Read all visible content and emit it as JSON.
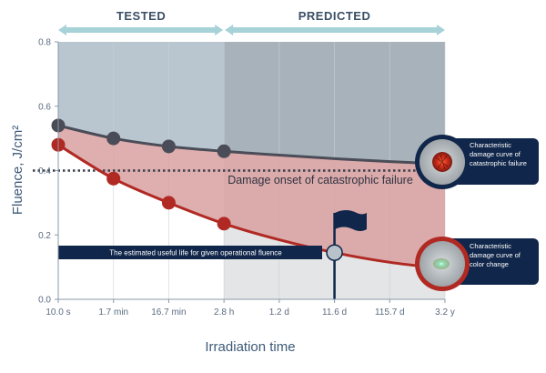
{
  "chart_data": {
    "type": "line",
    "ylabel": "Fluence, J/cm²",
    "xlabel": "Irradiation time",
    "ylim": [
      0,
      0.8
    ],
    "y_ticks": [
      "0.0",
      "0.2",
      "0.4",
      "0.6",
      "0.8"
    ],
    "x_ticks": [
      "10.0 s",
      "1.7 min",
      "16.7 min",
      "2.8 h",
      "1.2 d",
      "11.6 d",
      "115.7 d",
      "3.2 y"
    ],
    "phases": [
      {
        "label": "TESTED",
        "from": 0,
        "to": 3
      },
      {
        "label": "PREDICTED",
        "from": 3,
        "to": 7
      }
    ],
    "series": [
      {
        "key": "catastrophic",
        "color": "#4a4d57",
        "points": [
          {
            "x": 0,
            "y": 0.54
          },
          {
            "x": 1,
            "y": 0.5
          },
          {
            "x": 2,
            "y": 0.475
          },
          {
            "x": 3,
            "y": 0.46
          }
        ],
        "curve": [
          {
            "x": 0,
            "y": 0.54
          },
          {
            "x": 1,
            "y": 0.5
          },
          {
            "x": 2,
            "y": 0.475
          },
          {
            "x": 3,
            "y": 0.46
          },
          {
            "x": 4,
            "y": 0.448
          },
          {
            "x": 5,
            "y": 0.437
          },
          {
            "x": 6,
            "y": 0.428
          },
          {
            "x": 7,
            "y": 0.42
          }
        ]
      },
      {
        "key": "color_change",
        "color": "#b02a23",
        "points": [
          {
            "x": 0,
            "y": 0.48
          },
          {
            "x": 1,
            "y": 0.375
          },
          {
            "x": 2,
            "y": 0.3
          },
          {
            "x": 3,
            "y": 0.235
          }
        ],
        "curve": [
          {
            "x": 0,
            "y": 0.48
          },
          {
            "x": 1,
            "y": 0.375
          },
          {
            "x": 2,
            "y": 0.3
          },
          {
            "x": 3,
            "y": 0.235
          },
          {
            "x": 4,
            "y": 0.185
          },
          {
            "x": 5,
            "y": 0.145
          },
          {
            "x": 6,
            "y": 0.115
          },
          {
            "x": 7,
            "y": 0.095
          }
        ]
      }
    ],
    "threshold": {
      "y": 0.4,
      "label": "Damage onset of catastrophic failure"
    },
    "operating_point": {
      "x": 5,
      "y": 0.145
    },
    "banner": "The estimated useful life for given operational fluence",
    "callouts": {
      "catastrophic": "Characteristic damage curve of catastrophic failure",
      "color_change": "Characteristic damage curve of color change"
    },
    "colors": {
      "tested_bg": "#b9c5cf",
      "predicted_bg": "#a8b2ba",
      "damage_band": "#d9a0a0",
      "navy": "#10264a",
      "arrow": "#a6d2d8",
      "grid": "#c9d1d8"
    }
  }
}
